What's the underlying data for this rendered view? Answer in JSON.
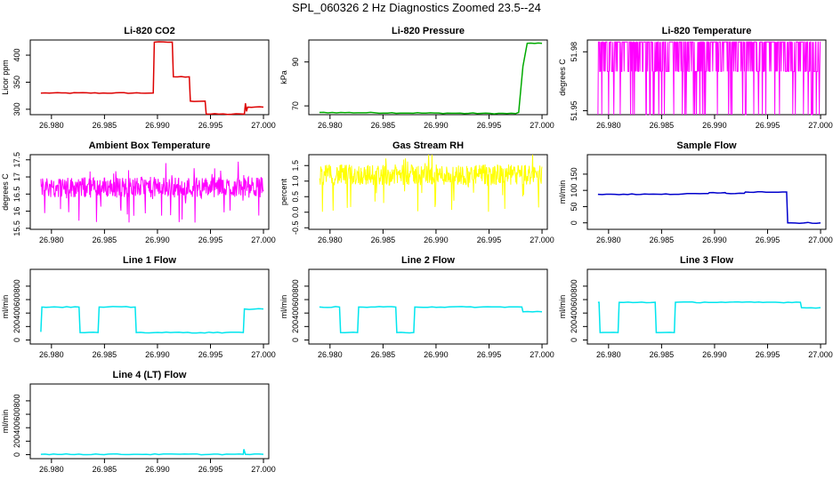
{
  "page": {
    "title": "SPL_060326  2 Hz Diagnostics Zoomed 23.5--24"
  },
  "chart_data": [
    {
      "type": "line",
      "title": "Li-820 CO2",
      "ylabel": "Licor ppm",
      "color": "#dd0000",
      "xlim": [
        26.978,
        27.0005
      ],
      "ylim": [
        290,
        428
      ],
      "xticks": [
        26.98,
        26.985,
        26.99,
        26.995,
        27.0
      ],
      "xtick_labels": [
        "26.980",
        "26.985",
        "26.990",
        "26.995",
        "27.000"
      ],
      "yticks": [
        300,
        350,
        400
      ],
      "ytick_labels": [
        "300",
        "350",
        "400"
      ],
      "noise": "low",
      "series": [
        {
          "x": [
            26.979,
            26.9896,
            26.9897,
            26.9914,
            26.9915,
            26.993,
            26.9931,
            26.9945,
            26.9946,
            26.9982,
            26.9983,
            26.9984,
            26.9985,
            27.0
          ],
          "values": [
            330,
            330,
            424,
            424,
            360,
            360,
            315,
            315,
            291,
            291,
            311,
            296,
            304,
            304
          ]
        }
      ]
    },
    {
      "type": "line",
      "title": "Li-820 Pressure",
      "ylabel": "kPa",
      "color": "#00aa00",
      "xlim": [
        26.978,
        27.0005
      ],
      "ylim": [
        66,
        100
      ],
      "xticks": [
        26.98,
        26.985,
        26.99,
        26.995,
        27.0
      ],
      "xtick_labels": [
        "26.980",
        "26.985",
        "26.990",
        "26.995",
        "27.000"
      ],
      "yticks": [
        70,
        90
      ],
      "ytick_labels": [
        "70",
        "90"
      ],
      "noise": "low",
      "series": [
        {
          "x": [
            26.979,
            26.9975,
            26.9978,
            26.9982,
            26.9986,
            27.0
          ],
          "values": [
            67,
            66.5,
            67,
            88,
            98.5,
            98.5
          ]
        }
      ]
    },
    {
      "type": "line",
      "title": "Li-820 Temperature",
      "ylabel": "degrees C",
      "color": "#ff00ff",
      "xlim": [
        26.978,
        27.0005
      ],
      "ylim": [
        51.948,
        51.986
      ],
      "xticks": [
        26.98,
        26.985,
        26.99,
        26.995,
        27.0
      ],
      "xtick_labels": [
        "26.980",
        "26.985",
        "26.990",
        "26.995",
        "27.000"
      ],
      "yticks": [
        51.95,
        51.98
      ],
      "ytick_labels": [
        "51.95",
        "51.98"
      ],
      "noise": "toggle",
      "levels": [
        51.985,
        51.97,
        51.948
      ],
      "series": [
        {
          "x": [
            26.979,
            27.0
          ],
          "values": [
            51.985,
            51.985
          ]
        }
      ]
    },
    {
      "type": "line",
      "title": "Ambient Box Temperature",
      "ylabel": "degrees C",
      "color": "#ff00ff",
      "xlim": [
        26.978,
        27.0005
      ],
      "ylim": [
        15.47,
        17.65
      ],
      "xticks": [
        26.98,
        26.985,
        26.99,
        26.995,
        27.0
      ],
      "xtick_labels": [
        "26.980",
        "26.985",
        "26.990",
        "26.995",
        "27.000"
      ],
      "yticks": [
        15.5,
        16.0,
        16.5,
        17.0,
        17.5
      ],
      "ytick_labels": [
        "15.5",
        "16",
        "16.5",
        "17",
        "17.5"
      ],
      "noise": "high",
      "series": [
        {
          "x": [
            26.979,
            27.0
          ],
          "values": [
            16.7,
            16.7
          ]
        }
      ]
    },
    {
      "type": "line",
      "title": "Gas Stream RH",
      "ylabel": "percent",
      "color": "#ffff00",
      "xlim": [
        26.978,
        27.0005
      ],
      "ylim": [
        -0.55,
        1.85
      ],
      "xticks": [
        26.98,
        26.985,
        26.99,
        26.995,
        27.0
      ],
      "xtick_labels": [
        "26.980",
        "26.985",
        "26.990",
        "26.995",
        "27.000"
      ],
      "yticks": [
        -0.5,
        0.0,
        0.5,
        1.0,
        1.5
      ],
      "ytick_labels": [
        "-0.5",
        "0.0",
        "0.5",
        "1.0",
        "1.5"
      ],
      "noise": "high",
      "series": [
        {
          "x": [
            26.979,
            27.0
          ],
          "values": [
            1.2,
            1.2
          ]
        }
      ]
    },
    {
      "type": "line",
      "title": "Sample Flow",
      "ylabel": "ml/min",
      "color": "#0000cc",
      "xlim": [
        26.978,
        27.0005
      ],
      "ylim": [
        -20,
        210
      ],
      "xticks": [
        26.98,
        26.985,
        26.99,
        26.995,
        27.0
      ],
      "xtick_labels": [
        "26.980",
        "26.985",
        "26.990",
        "26.995",
        "27.000"
      ],
      "yticks": [
        0,
        50,
        100,
        150
      ],
      "ytick_labels": [
        "0",
        "50",
        "100",
        "150"
      ],
      "noise": "low",
      "series": [
        {
          "x": [
            26.979,
            26.985,
            26.9894,
            26.9895,
            26.991,
            26.9911,
            26.9928,
            26.9929,
            26.9968,
            26.9969,
            26.9972,
            27.0
          ],
          "values": [
            88,
            88,
            90,
            93,
            93,
            91,
            91,
            95,
            95,
            0,
            0,
            0
          ]
        }
      ]
    },
    {
      "type": "line",
      "title": "Line 1 Flow",
      "ylabel": "ml/min",
      "color": "#00e5ee",
      "xlim": [
        26.978,
        27.0005
      ],
      "ylim": [
        -60,
        1050
      ],
      "xticks": [
        26.98,
        26.985,
        26.99,
        26.995,
        27.0
      ],
      "xtick_labels": [
        "26.980",
        "26.985",
        "26.990",
        "26.995",
        "27.000"
      ],
      "yticks": [
        0,
        200,
        400,
        600,
        800
      ],
      "ytick_labels": [
        "0",
        "200",
        "400",
        "600",
        "800"
      ],
      "noise": "low",
      "series": [
        {
          "x": [
            26.979,
            26.9791,
            26.9826,
            26.9827,
            26.9844,
            26.9845,
            26.9879,
            26.988,
            26.9981,
            26.9982,
            27.0
          ],
          "values": [
            120,
            490,
            490,
            110,
            110,
            490,
            490,
            110,
            110,
            460,
            460
          ]
        }
      ]
    },
    {
      "type": "line",
      "title": "Line 2 Flow",
      "ylabel": "ml/min",
      "color": "#00e5ee",
      "xlim": [
        26.978,
        27.0005
      ],
      "ylim": [
        -60,
        1050
      ],
      "xticks": [
        26.98,
        26.985,
        26.99,
        26.995,
        27.0
      ],
      "xtick_labels": [
        "26.980",
        "26.985",
        "26.990",
        "26.995",
        "27.000"
      ],
      "yticks": [
        0,
        200,
        400,
        600,
        800
      ],
      "ytick_labels": [
        "0",
        "200",
        "400",
        "600",
        "800"
      ],
      "noise": "low",
      "series": [
        {
          "x": [
            26.979,
            26.9809,
            26.981,
            26.9826,
            26.9827,
            26.9862,
            26.9863,
            26.9879,
            26.988,
            26.9981,
            26.9982,
            27.0
          ],
          "values": [
            490,
            490,
            110,
            110,
            490,
            490,
            110,
            110,
            490,
            490,
            420,
            420
          ]
        }
      ]
    },
    {
      "type": "line",
      "title": "Line 3 Flow",
      "ylabel": "ml/min",
      "color": "#00e5ee",
      "xlim": [
        26.978,
        27.0005
      ],
      "ylim": [
        -60,
        1050
      ],
      "xticks": [
        26.98,
        26.985,
        26.99,
        26.995,
        27.0
      ],
      "xtick_labels": [
        "26.980",
        "26.985",
        "26.990",
        "26.995",
        "27.000"
      ],
      "yticks": [
        0,
        200,
        400,
        600,
        800
      ],
      "ytick_labels": [
        "0",
        "200",
        "400",
        "600",
        "800"
      ],
      "noise": "low",
      "series": [
        {
          "x": [
            26.979,
            26.9791,
            26.9792,
            26.9809,
            26.981,
            26.9844,
            26.9845,
            26.9862,
            26.9863,
            26.9981,
            26.9982,
            27.0
          ],
          "values": [
            560,
            560,
            110,
            110,
            560,
            560,
            110,
            110,
            560,
            560,
            480,
            480
          ]
        }
      ]
    },
    {
      "type": "line",
      "title": "Line 4 (LT) Flow",
      "ylabel": "ml/min",
      "color": "#00e5ee",
      "xlim": [
        26.978,
        27.0005
      ],
      "ylim": [
        -60,
        1050
      ],
      "xticks": [
        26.98,
        26.985,
        26.99,
        26.995,
        27.0
      ],
      "xtick_labels": [
        "26.980",
        "26.985",
        "26.990",
        "26.995",
        "27.000"
      ],
      "yticks": [
        0,
        200,
        400,
        600,
        800
      ],
      "ytick_labels": [
        "0",
        "200",
        "400",
        "600",
        "800"
      ],
      "noise": "low",
      "series": [
        {
          "x": [
            26.979,
            26.9981,
            26.99815,
            26.9983,
            27.0
          ],
          "values": [
            5,
            5,
            80,
            5,
            5
          ]
        }
      ]
    }
  ]
}
